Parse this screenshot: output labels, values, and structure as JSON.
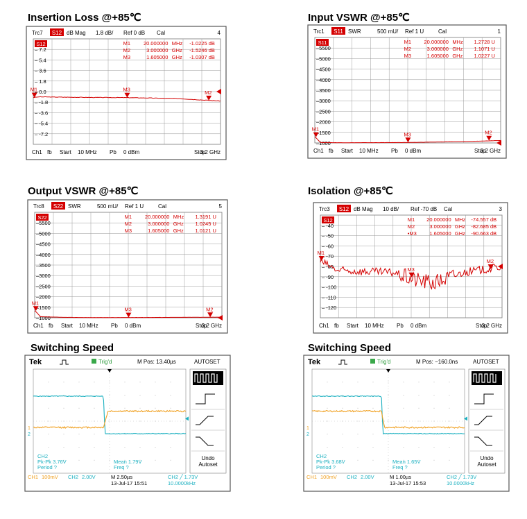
{
  "panels": [
    {
      "kind": "vna",
      "title": "Insertion Loss @+85℃",
      "header": [
        "Trc7",
        "dB Mag",
        "1.8 dB/",
        "Ref 0 dB",
        "Cal",
        "4"
      ],
      "badge": "S12",
      "footer": [
        "Ch1",
        "fb",
        "Start",
        "10 MHz",
        "Pb",
        "0 dBm",
        "Stop",
        "3.2 GHz"
      ],
      "markers": [
        {
          "name": "M1",
          "freq": "20.000000",
          "unit": "MHz",
          "value": "-1.0225",
          "vunit": "dB"
        },
        {
          "name": "M2",
          "freq": "3.000000",
          "unit": "GHz",
          "value": "-1.5246",
          "vunit": "dB"
        },
        {
          "name": "M3",
          "freq": "1.605000",
          "unit": "GHz",
          "value": "-1.0307",
          "vunit": "dB"
        }
      ]
    },
    {
      "kind": "vna",
      "title": "Input VSWR @+85℃",
      "header": [
        "Trc1",
        "SWR",
        "500 mU/",
        "Ref 1 U",
        "Cal",
        "1"
      ],
      "badge": "S11",
      "footer": [
        "Ch1",
        "fb",
        "Start",
        "10 MHz",
        "Pb",
        "0 dBm",
        "Stop",
        "3.2 GHz"
      ],
      "markers": [
        {
          "name": "M1",
          "freq": "20.000000",
          "unit": "MHz",
          "value": "1.2728",
          "vunit": "U"
        },
        {
          "name": "M2",
          "freq": "3.000000",
          "unit": "GHz",
          "value": "1.1071",
          "vunit": "U"
        },
        {
          "name": "M3",
          "freq": "1.605000",
          "unit": "GHz",
          "value": "1.0227",
          "vunit": "U"
        }
      ]
    },
    {
      "kind": "vna",
      "title": "Output VSWR @+85℃",
      "header": [
        "Trc8",
        "SWR",
        "500 mU/",
        "Ref 1 U",
        "Cal",
        "5"
      ],
      "badge": "S22",
      "footer": [
        "Ch1",
        "fb",
        "Start",
        "10 MHz",
        "Pb",
        "0 dBm",
        "Stop",
        "3.2 GHz"
      ],
      "markers": [
        {
          "name": "M1",
          "freq": "20.000000",
          "unit": "MHz",
          "value": "1.3191",
          "vunit": "U"
        },
        {
          "name": "M2",
          "freq": "3.000000",
          "unit": "GHz",
          "value": "1.0245",
          "vunit": "U"
        },
        {
          "name": "M3",
          "freq": "1.605000",
          "unit": "GHz",
          "value": "1.0121",
          "vunit": "U"
        }
      ]
    },
    {
      "kind": "vna",
      "title": "Isolation @+85℃",
      "header": [
        "Trc3",
        "dB Mag",
        "10 dB/",
        "Ref -70 dB",
        "Cal",
        "3"
      ],
      "badge": "S12",
      "footer": [
        "Ch1",
        "fb",
        "Start",
        "10 MHz",
        "Pb",
        "0 dBm",
        "Stop",
        "3.2 GHz"
      ],
      "markers": [
        {
          "name": "M1",
          "freq": "20.000000",
          "unit": "MHz",
          "value": "-74.557",
          "vunit": "dB"
        },
        {
          "name": "M2",
          "freq": "3.000000",
          "unit": "GHz",
          "value": "-82.685",
          "vunit": "dB"
        },
        {
          "name": "•M3",
          "freq": "1.605000",
          "unit": "GHz",
          "value": "-90.663",
          "vunit": "dB"
        }
      ]
    },
    {
      "kind": "scope",
      "title": "Switching Speed",
      "brand": "Tek",
      "trig": "Trig'd",
      "mpos": "M Pos: 13.40µs",
      "autoset": "AUTOSET",
      "menu": [
        "Undo",
        "Autoset"
      ],
      "meas": [
        "CH2",
        "Pk-Pk 3.76V",
        "Period ?",
        "Mean 1.79V",
        "Freq ?"
      ],
      "bottom": [
        "CH1",
        "100mV",
        "CH2",
        "2.00V",
        "M 2.50µs",
        "13-Jul-17 15:51",
        "CH2 ╱ 1.73V",
        "10.0000kHz"
      ]
    },
    {
      "kind": "scope",
      "title": "Switching Speed",
      "brand": "Tek",
      "trig": "Trig'd",
      "mpos": "M Pos: −160.0ns",
      "autoset": "AUTOSET",
      "menu": [
        "Undo",
        "Autoset"
      ],
      "meas": [
        "CH2",
        "Pk-Pk 3.68V",
        "Period ?",
        "Mean 1.65V",
        "Freq ?"
      ],
      "bottom": [
        "CH1",
        "100mV",
        "CH2",
        "2.00V",
        "M 1.00µs",
        "13-Jul-17 15:53",
        "CH2 ╱ 1.73V",
        "10.0000kHz"
      ]
    }
  ],
  "chart_data": [
    {
      "type": "line",
      "title": "Insertion Loss @+85℃",
      "series": [
        {
          "name": "Trc7 S12",
          "x": [
            0.01,
            0.1,
            0.5,
            1.0,
            1.6,
            2.0,
            2.5,
            3.0,
            3.2
          ],
          "values": [
            -1.0,
            -0.9,
            -0.95,
            -1.0,
            -1.03,
            -1.1,
            -1.2,
            -1.5,
            -1.6
          ]
        }
      ],
      "ylim": [
        -9,
        9
      ],
      "yticks": [
        "7.2",
        "5.4",
        "3.6",
        "1.8",
        "0.0",
        "-1.8",
        "-3.6",
        "-5.4",
        "-7.2"
      ],
      "markers": [
        {
          "name": "M1",
          "x": 0.02,
          "y": -1.0225
        },
        {
          "name": "M3",
          "x": 1.605,
          "y": -1.0307
        },
        {
          "name": "M2",
          "x": 3.0,
          "y": -1.5246
        }
      ],
      "color": "#d40000",
      "grid": true
    },
    {
      "type": "line",
      "title": "Input VSWR @+85℃",
      "series": [
        {
          "name": "Trc1 S11",
          "x": [
            0.01,
            0.1,
            0.5,
            1.0,
            1.6,
            2.0,
            2.5,
            3.0,
            3.2
          ],
          "values": [
            1.27,
            1.02,
            1.01,
            1.015,
            1.02,
            1.04,
            1.06,
            1.1,
            1.12
          ]
        }
      ],
      "ylim": [
        1,
        6
      ],
      "yticks": [
        "5500",
        "5000",
        "4500",
        "4000",
        "3500",
        "3000",
        "2500",
        "2000",
        "1500",
        "1000"
      ],
      "markers": [
        {
          "name": "M1",
          "x": 0.02,
          "y": 1.2728
        },
        {
          "name": "M3",
          "x": 1.605,
          "y": 1.0227
        },
        {
          "name": "M2",
          "x": 3.0,
          "y": 1.1071
        }
      ],
      "color": "#d40000",
      "grid": true
    },
    {
      "type": "line",
      "title": "Output VSWR @+85℃",
      "series": [
        {
          "name": "Trc8 S22",
          "x": [
            0.01,
            0.1,
            0.5,
            1.0,
            1.6,
            2.0,
            2.5,
            3.0,
            3.2
          ],
          "values": [
            1.32,
            1.05,
            1.02,
            1.01,
            1.012,
            1.015,
            1.02,
            1.025,
            1.03
          ]
        }
      ],
      "ylim": [
        1,
        6
      ],
      "yticks": [
        "5500",
        "5000",
        "4500",
        "4000",
        "3500",
        "3000",
        "2500",
        "2000",
        "1500",
        "1000"
      ],
      "markers": [
        {
          "name": "M1",
          "x": 0.02,
          "y": 1.3191
        },
        {
          "name": "M3",
          "x": 1.605,
          "y": 1.0121
        },
        {
          "name": "M2",
          "x": 3.0,
          "y": 1.0245
        }
      ],
      "color": "#d40000",
      "grid": true
    },
    {
      "type": "line",
      "title": "Isolation @+85℃",
      "series": [
        {
          "name": "Trc3 S12",
          "x": [
            0.01,
            0.3,
            0.8,
            1.3,
            1.6,
            2.0,
            2.5,
            3.0,
            3.2
          ],
          "values": [
            -75,
            -84,
            -85,
            -86,
            -92,
            -96,
            -86,
            -82,
            -80
          ]
        }
      ],
      "ylim": [
        -130,
        -30
      ],
      "yticks": [
        "-40",
        "-50",
        "-60",
        "-70",
        "-80",
        "-90",
        "-100",
        "-110",
        "-120"
      ],
      "markers": [
        {
          "name": "M1",
          "x": 0.02,
          "y": -74.557
        },
        {
          "name": "M3",
          "x": 1.605,
          "y": -90.663
        },
        {
          "name": "M2",
          "x": 3.0,
          "y": -82.685
        }
      ],
      "color": "#d40000",
      "grid": true
    },
    {
      "type": "line",
      "title": "Switching Speed",
      "series": [
        {
          "name": "CH2",
          "x": [
            0,
            4.6,
            4.7,
            10
          ],
          "values": [
            2,
            2,
            -1,
            -1
          ],
          "color": "#1ab0c0"
        },
        {
          "name": "CH1",
          "x": [
            0,
            4.6,
            4.9,
            10
          ],
          "values": [
            -0.5,
            -0.5,
            0.8,
            0.8
          ],
          "color": "#f0a020"
        }
      ]
    },
    {
      "type": "line",
      "title": "Switching Speed",
      "series": [
        {
          "name": "CH2",
          "x": [
            0,
            4.55,
            4.65,
            10
          ],
          "values": [
            2,
            2,
            -1,
            -1
          ],
          "color": "#1ab0c0"
        },
        {
          "name": "CH1",
          "x": [
            0,
            4.55,
            4.75,
            10
          ],
          "values": [
            0.8,
            0.8,
            -0.5,
            -0.5
          ],
          "color": "#f0a020"
        }
      ]
    }
  ]
}
